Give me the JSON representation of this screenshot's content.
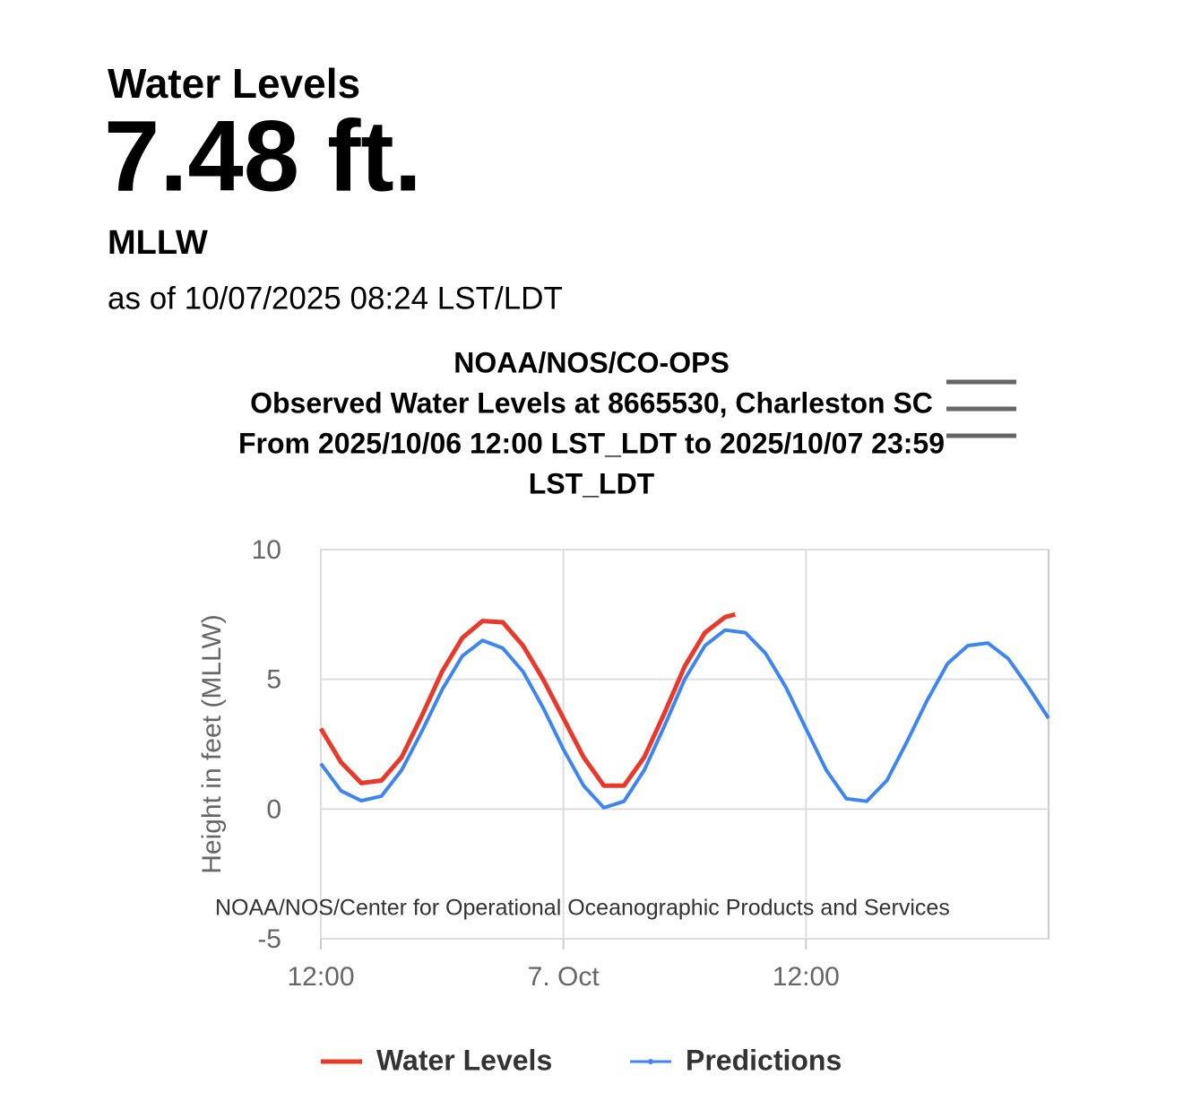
{
  "header": {
    "label": "Water Levels",
    "value": "7.48 ft.",
    "datum": "MLLW",
    "timestamp": "as of 10/07/2025 08:24 LST/LDT"
  },
  "chart_data": {
    "type": "line",
    "title": [
      "NOAA/NOS/CO-OPS",
      "Observed Water Levels at 8665530, Charleston SC",
      "From 2025/10/06 12:00 LST_LDT to 2025/10/07 23:59",
      "LST_LDT"
    ],
    "y_label": "Height in feet (MLLW)",
    "credits": "NOAA/NOS/Center for Operational Oceanographic Products and Services",
    "xlim": [
      0,
      36
    ],
    "xticks": [
      {
        "value": 0,
        "label": "12:00"
      },
      {
        "value": 12,
        "label": "7. Oct"
      },
      {
        "value": 24,
        "label": "12:00"
      }
    ],
    "ylim": [
      -5,
      10
    ],
    "yticks": [
      -5,
      0,
      5,
      10
    ],
    "grid": true,
    "series": [
      {
        "name": "Water Levels",
        "color": "#e8392b",
        "x": [
          0,
          1,
          2,
          3,
          4,
          5,
          6,
          7,
          8,
          9,
          10,
          11,
          12,
          13,
          14,
          15,
          16,
          17,
          18,
          19,
          20,
          20.5
        ],
        "values": [
          3.1,
          1.8,
          1.0,
          1.1,
          2.0,
          3.6,
          5.3,
          6.6,
          7.25,
          7.2,
          6.3,
          5.0,
          3.5,
          2.0,
          0.9,
          0.9,
          2.0,
          3.7,
          5.5,
          6.8,
          7.4,
          7.5
        ]
      },
      {
        "name": "Predictions",
        "color": "#3d85f0",
        "x": [
          0,
          1,
          2,
          3,
          4,
          5,
          6,
          7,
          8,
          9,
          10,
          11,
          12,
          13,
          14,
          15,
          16,
          17,
          18,
          19,
          20,
          21,
          22,
          23,
          24,
          25,
          26,
          27,
          28,
          29,
          30,
          31,
          32,
          33,
          34,
          35,
          36
        ],
        "values": [
          1.75,
          0.7,
          0.32,
          0.5,
          1.5,
          3.0,
          4.6,
          5.9,
          6.5,
          6.2,
          5.3,
          3.9,
          2.3,
          0.9,
          0.05,
          0.3,
          1.5,
          3.2,
          5.0,
          6.3,
          6.9,
          6.8,
          6.0,
          4.7,
          3.1,
          1.5,
          0.4,
          0.3,
          1.1,
          2.6,
          4.2,
          5.6,
          6.3,
          6.4,
          5.8,
          4.7,
          3.5
        ]
      }
    ]
  }
}
